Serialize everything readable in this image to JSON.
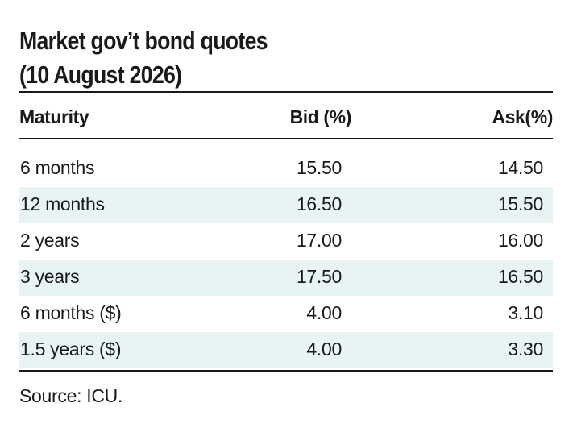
{
  "title_line1": "Market gov’t bond quotes",
  "title_line2": "(10 August 2026)",
  "source": "Source: ICU.",
  "colors": {
    "shade": "#e8f3f3",
    "text": "#1a1a1a",
    "rule": "#1a1a1a"
  },
  "chart_data": {
    "type": "table",
    "columns": [
      "Maturity",
      "Bid (%)",
      "Ask(%)"
    ],
    "rows": [
      [
        "6 months",
        "15.50",
        "14.50"
      ],
      [
        "12 months",
        "16.50",
        "15.50"
      ],
      [
        "2 years",
        "17.00",
        "16.00"
      ],
      [
        "3 years",
        "17.50",
        "16.50"
      ],
      [
        "6 months ($)",
        "4.00",
        "3.10"
      ],
      [
        "1.5 years ($)",
        "4.00",
        "3.30"
      ]
    ]
  }
}
